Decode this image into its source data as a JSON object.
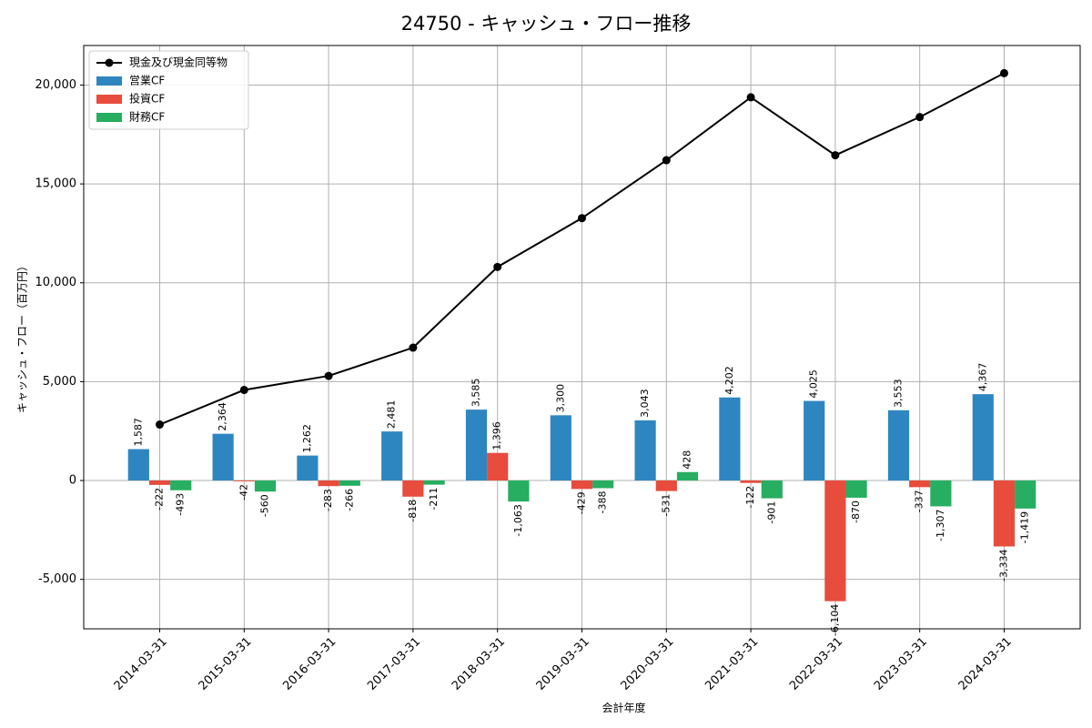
{
  "chart_data": {
    "type": "bar",
    "title": "24750 - キャッシュ・フロー推移",
    "xlabel": "会計年度",
    "ylabel": "キャッシュ・フロー（百万円）",
    "ylim": [
      -7500,
      22000
    ],
    "yticks": [
      -5000,
      0,
      5000,
      10000,
      15000,
      20000
    ],
    "ytick_labels": [
      "-5,000",
      "0",
      "5,000",
      "10,000",
      "15,000",
      "20,000"
    ],
    "grid": true,
    "legend_position": "top-left",
    "categories": [
      "2014-03-31",
      "2015-03-31",
      "2016-03-31",
      "2017-03-31",
      "2018-03-31",
      "2019-03-31",
      "2020-03-31",
      "2021-03-31",
      "2022-03-31",
      "2023-03-31",
      "2024-03-31"
    ],
    "series": [
      {
        "name": "営業CF",
        "type": "bar",
        "color": "#2e86c1",
        "values": [
          1587,
          2364,
          1262,
          2481,
          3585,
          3300,
          3043,
          4202,
          4025,
          3553,
          4367
        ],
        "labels": [
          "1,587",
          "2,364",
          "1,262",
          "2,481",
          "3,585",
          "3,300",
          "3,043",
          "4,202",
          "4,025",
          "3,553",
          "4,367"
        ]
      },
      {
        "name": "投資CF",
        "type": "bar",
        "color": "#e74c3c",
        "values": [
          -222,
          -42,
          -283,
          -818,
          1396,
          -429,
          -531,
          -122,
          -6104,
          -337,
          -3334
        ],
        "labels": [
          "-222",
          "-42",
          "-283",
          "-818",
          "1,396",
          "-429",
          "-531",
          "-122",
          "-6,104",
          "-337",
          "-3,334"
        ]
      },
      {
        "name": "財務CF",
        "type": "bar",
        "color": "#27ae60",
        "values": [
          -493,
          -560,
          -266,
          -211,
          -1063,
          -388,
          428,
          -901,
          -870,
          -1307,
          -1419
        ],
        "labels": [
          "-493",
          "-560",
          "-266",
          "-211",
          "-1,063",
          "-388",
          "428",
          "-901",
          "-870",
          "-1,307",
          "-1,419"
        ]
      },
      {
        "name": "現金及び現金同等物",
        "type": "line",
        "color": "#000000",
        "values": [
          2830,
          4580,
          5290,
          6720,
          10800,
          13270,
          16200,
          19380,
          16450,
          18380,
          20600
        ]
      }
    ]
  }
}
